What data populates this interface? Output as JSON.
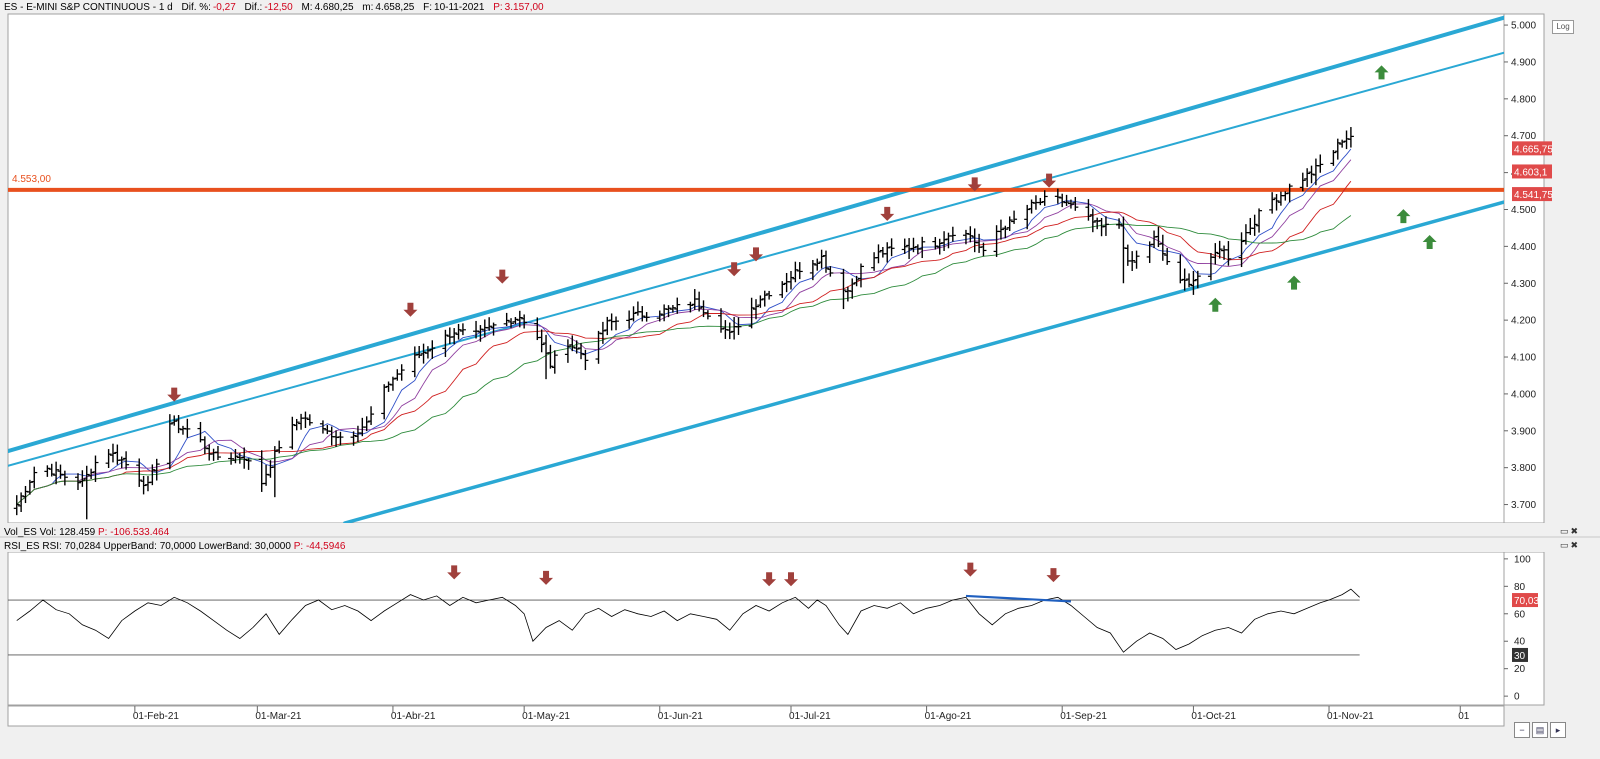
{
  "header": {
    "symbol": "ES - E-MINI S&P CONTINUOUS - 1 d",
    "dif_pct_label": "Dif. %:",
    "dif_pct": "-0,27",
    "dif_label": "Dif.:",
    "dif": "-12,50",
    "max_label": "M:",
    "max": "4.680,25",
    "min_label": "m:",
    "min": "4.658,25",
    "date_label": "F:",
    "date": "10-11-2021",
    "p_label": "P:",
    "p": "3.157,00",
    "log_button": "Log"
  },
  "volume_header": {
    "name": "Vol_ES",
    "vol_label": "Vol:",
    "vol": "128.459",
    "p_label": "P:",
    "p": "-106.533.464"
  },
  "rsi_header": {
    "name": "RSI_ES",
    "rsi_label": "RSI:",
    "rsi": "70,0284",
    "upper_label": "UpperBand:",
    "upper": "70,0000",
    "lower_label": "LowerBand:",
    "lower": "30,0000",
    "p_label": "P:",
    "p": "-44,5946"
  },
  "colors": {
    "candle": "#000000",
    "channel": "#2aa8d4",
    "level": "#e8501e",
    "arrow_down": "#a0403c",
    "arrow_up": "#3c8c3c",
    "ma_blue": "#3050c8",
    "ma_purple": "#9040a0",
    "ma_red": "#d02020",
    "ma_green": "#2e8b3c",
    "rsi_line": "#000000",
    "rsi_div": "#1f5fbf",
    "price_tag": "#e04a4a"
  },
  "chart_data": [
    {
      "type": "ohlc",
      "title": "ES - E-MINI S&P CONTINUOUS - 1 d",
      "y_ticks": [
        "5.000",
        "4.900",
        "4.800",
        "4.700",
        "4.600",
        "4.500",
        "4.400",
        "4.300",
        "4.200",
        "4.100",
        "4.000",
        "3.900",
        "3.800",
        "3.700"
      ],
      "ylim": [
        3650,
        5030
      ],
      "x_ticks": [
        "01-Feb-21",
        "01-Mar-21",
        "01-Abr-21",
        "01-May-21",
        "01-Jun-21",
        "01-Jul-21",
        "01-Ago-21",
        "01-Sep-21",
        "01-Oct-21",
        "01-Nov-21",
        "01"
      ],
      "x_tick_days": [
        27,
        55,
        86,
        116,
        147,
        177,
        208,
        239,
        269,
        300,
        330
      ],
      "xlim_days": [
        -2,
        340
      ],
      "close_anchors": [
        [
          0,
          3700
        ],
        [
          5,
          3810
        ],
        [
          10,
          3780
        ],
        [
          15,
          3760
        ],
        [
          20,
          3850
        ],
        [
          24,
          3820
        ],
        [
          30,
          3750
        ],
        [
          35,
          3920
        ],
        [
          40,
          3900
        ],
        [
          45,
          3830
        ],
        [
          52,
          3830
        ],
        [
          56,
          3760
        ],
        [
          60,
          3860
        ],
        [
          65,
          3940
        ],
        [
          70,
          3900
        ],
        [
          75,
          3880
        ],
        [
          80,
          3920
        ],
        [
          85,
          4030
        ],
        [
          90,
          4090
        ],
        [
          95,
          4130
        ],
        [
          100,
          4170
        ],
        [
          105,
          4160
        ],
        [
          110,
          4190
        ],
        [
          115,
          4210
        ],
        [
          118,
          4180
        ],
        [
          122,
          4080
        ],
        [
          126,
          4140
        ],
        [
          130,
          4100
        ],
        [
          135,
          4190
        ],
        [
          140,
          4210
        ],
        [
          145,
          4220
        ],
        [
          150,
          4230
        ],
        [
          155,
          4250
        ],
        [
          160,
          4200
        ],
        [
          163,
          4160
        ],
        [
          167,
          4220
        ],
        [
          170,
          4260
        ],
        [
          175,
          4300
        ],
        [
          180,
          4350
        ],
        [
          184,
          4370
        ],
        [
          187,
          4310
        ],
        [
          190,
          4280
        ],
        [
          193,
          4340
        ],
        [
          197,
          4380
        ],
        [
          200,
          4390
        ],
        [
          205,
          4400
        ],
        [
          210,
          4410
        ],
        [
          214,
          4440
        ],
        [
          218,
          4430
        ],
        [
          221,
          4380
        ],
        [
          224,
          4440
        ],
        [
          228,
          4470
        ],
        [
          232,
          4510
        ],
        [
          236,
          4530
        ],
        [
          240,
          4520
        ],
        [
          244,
          4480
        ],
        [
          248,
          4450
        ],
        [
          252,
          4460
        ],
        [
          254,
          4350
        ],
        [
          257,
          4380
        ],
        [
          260,
          4420
        ],
        [
          263,
          4360
        ],
        [
          266,
          4300
        ],
        [
          269,
          4310
        ],
        [
          272,
          4340
        ],
        [
          275,
          4400
        ],
        [
          278,
          4360
        ],
        [
          280,
          4420
        ],
        [
          283,
          4470
        ],
        [
          286,
          4520
        ],
        [
          289,
          4540
        ],
        [
          292,
          4570
        ],
        [
          296,
          4600
        ],
        [
          300,
          4640
        ],
        [
          303,
          4690
        ],
        [
          305,
          4700
        ],
        [
          307,
          4670
        ]
      ],
      "special_bars": [
        [
          16,
          3760,
          3660
        ],
        [
          59,
          3780,
          3720
        ],
        [
          121,
          4160,
          4040
        ],
        [
          188,
          4330,
          4230
        ],
        [
          253,
          4420,
          4300
        ],
        [
          267,
          4340,
          4280
        ]
      ],
      "level": {
        "value": 4553,
        "label": "4.553,00"
      },
      "channel_lines": [
        {
          "from": [
            -2,
            3845
          ],
          "to": [
            340,
            5020
          ],
          "width": 4
        },
        {
          "from": [
            -2,
            3805
          ],
          "to": [
            340,
            4925
          ],
          "width": 2
        },
        {
          "from": [
            75,
            3650
          ],
          "to": [
            340,
            4520
          ],
          "width": 3.5
        }
      ],
      "price_tags": [
        {
          "value": 4665.75,
          "label": "4.665,75"
        },
        {
          "value": 4603.1,
          "label": "4.603,1"
        },
        {
          "value": 4541.75,
          "label": "4.541,75"
        }
      ],
      "down_arrows": [
        [
          36,
          3990
        ],
        [
          90,
          4220
        ],
        [
          111,
          4310
        ],
        [
          164,
          4330
        ],
        [
          169,
          4370
        ],
        [
          199,
          4480
        ],
        [
          219,
          4560
        ],
        [
          236,
          4570
        ]
      ],
      "up_arrows": [
        [
          274,
          4250
        ],
        [
          292,
          4310
        ],
        [
          312,
          4880
        ],
        [
          317,
          4490
        ],
        [
          323,
          4420
        ]
      ],
      "moving_averages": [
        {
          "name": "ma_blue",
          "period": 3,
          "lag": 1
        },
        {
          "name": "ma_purple",
          "period": 5,
          "lag": 1.5
        },
        {
          "name": "ma_red",
          "period": 9,
          "lag": 2.5
        },
        {
          "name": "ma_green",
          "period": 16,
          "lag": 4
        }
      ]
    },
    {
      "type": "line",
      "title": "RSI_ES",
      "y_ticks": [
        "100",
        "80",
        "60",
        "40",
        "20",
        "0"
      ],
      "ylim": [
        -5,
        105
      ],
      "bands": [
        70,
        30
      ],
      "series": [
        {
          "points": [
            [
              0,
              55
            ],
            [
              3,
              62
            ],
            [
              6,
              70
            ],
            [
              9,
              63
            ],
            [
              12,
              60
            ],
            [
              15,
              52
            ],
            [
              18,
              48
            ],
            [
              21,
              42
            ],
            [
              24,
              55
            ],
            [
              27,
              62
            ],
            [
              30,
              68
            ],
            [
              33,
              66
            ],
            [
              36,
              72
            ],
            [
              39,
              68
            ],
            [
              42,
              62
            ],
            [
              45,
              55
            ],
            [
              48,
              48
            ],
            [
              51,
              42
            ],
            [
              54,
              50
            ],
            [
              57,
              60
            ],
            [
              60,
              45
            ],
            [
              63,
              56
            ],
            [
              66,
              66
            ],
            [
              69,
              70
            ],
            [
              72,
              63
            ],
            [
              75,
              66
            ],
            [
              78,
              62
            ],
            [
              81,
              55
            ],
            [
              84,
              62
            ],
            [
              87,
              68
            ],
            [
              90,
              74
            ],
            [
              93,
              70
            ],
            [
              96,
              73
            ],
            [
              99,
              66
            ],
            [
              102,
              72
            ],
            [
              105,
              68
            ],
            [
              108,
              70
            ],
            [
              111,
              72
            ],
            [
              114,
              66
            ],
            [
              116,
              60
            ],
            [
              118,
              40
            ],
            [
              121,
              50
            ],
            [
              124,
              55
            ],
            [
              127,
              48
            ],
            [
              130,
              60
            ],
            [
              133,
              64
            ],
            [
              136,
              58
            ],
            [
              139,
              63
            ],
            [
              142,
              60
            ],
            [
              145,
              58
            ],
            [
              148,
              62
            ],
            [
              151,
              55
            ],
            [
              154,
              60
            ],
            [
              157,
              58
            ],
            [
              160,
              56
            ],
            [
              163,
              48
            ],
            [
              166,
              60
            ],
            [
              169,
              66
            ],
            [
              172,
              62
            ],
            [
              175,
              68
            ],
            [
              178,
              72
            ],
            [
              181,
              64
            ],
            [
              183,
              70
            ],
            [
              185,
              66
            ],
            [
              188,
              52
            ],
            [
              190,
              45
            ],
            [
              193,
              62
            ],
            [
              196,
              66
            ],
            [
              199,
              64
            ],
            [
              202,
              68
            ],
            [
              205,
              60
            ],
            [
              208,
              64
            ],
            [
              211,
              66
            ],
            [
              214,
              70
            ],
            [
              217,
              72
            ],
            [
              220,
              60
            ],
            [
              223,
              52
            ],
            [
              226,
              60
            ],
            [
              229,
              64
            ],
            [
              232,
              66
            ],
            [
              235,
              70
            ],
            [
              238,
              72
            ],
            [
              241,
              66
            ],
            [
              244,
              58
            ],
            [
              247,
              50
            ],
            [
              250,
              46
            ],
            [
              253,
              32
            ],
            [
              256,
              40
            ],
            [
              259,
              46
            ],
            [
              262,
              42
            ],
            [
              265,
              34
            ],
            [
              268,
              38
            ],
            [
              271,
              44
            ],
            [
              274,
              48
            ],
            [
              277,
              50
            ],
            [
              280,
              46
            ],
            [
              283,
              56
            ],
            [
              286,
              60
            ],
            [
              289,
              62
            ],
            [
              292,
              60
            ],
            [
              295,
              64
            ],
            [
              298,
              68
            ],
            [
              300,
              70
            ],
            [
              303,
              74
            ],
            [
              305,
              78
            ],
            [
              307,
              72
            ]
          ],
          "value_tag": "70,03"
        }
      ],
      "band_label": "30",
      "divergence": {
        "from": [
          217,
          73
        ],
        "to": [
          241,
          69
        ]
      },
      "down_arrows": [
        [
          100,
          88
        ],
        [
          121,
          84
        ],
        [
          172,
          83
        ],
        [
          177,
          83
        ],
        [
          218,
          90
        ],
        [
          237,
          86
        ]
      ]
    }
  ]
}
